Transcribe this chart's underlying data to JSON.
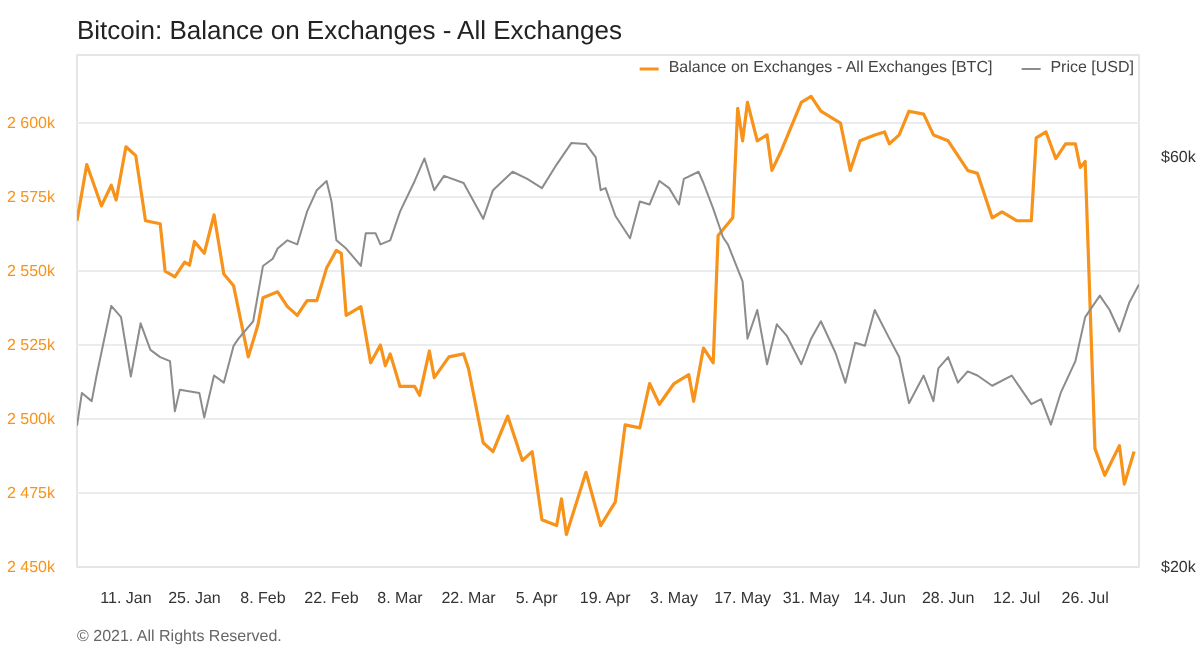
{
  "chart_data": {
    "type": "line",
    "title": "Bitcoin: Balance on Exchanges - All Exchanges",
    "annotations": [
      "© 2021. All Rights Reserved."
    ],
    "xlim": [
      "2021-01-01",
      "2021-08-06"
    ],
    "xticks": [
      {
        "value": "2021-01-11",
        "label": "11. Jan"
      },
      {
        "value": "2021-01-25",
        "label": "25. Jan"
      },
      {
        "value": "2021-02-08",
        "label": "8. Feb"
      },
      {
        "value": "2021-02-22",
        "label": "22. Feb"
      },
      {
        "value": "2021-03-08",
        "label": "8. Mar"
      },
      {
        "value": "2021-03-22",
        "label": "22. Mar"
      },
      {
        "value": "2021-04-05",
        "label": "5. Apr"
      },
      {
        "value": "2021-04-19",
        "label": "19. Apr"
      },
      {
        "value": "2021-05-03",
        "label": "3. May"
      },
      {
        "value": "2021-05-17",
        "label": "17. May"
      },
      {
        "value": "2021-05-31",
        "label": "31. May"
      },
      {
        "value": "2021-06-14",
        "label": "14. Jun"
      },
      {
        "value": "2021-06-28",
        "label": "28. Jun"
      },
      {
        "value": "2021-07-12",
        "label": "12. Jul"
      },
      {
        "value": "2021-07-26",
        "label": "26. Jul"
      }
    ],
    "ylim": [
      2450000,
      2623000
    ],
    "yticks": [
      {
        "value": 2450000,
        "label": "2 450k"
      },
      {
        "value": 2475000,
        "label": "2 475k"
      },
      {
        "value": 2500000,
        "label": "2 500k"
      },
      {
        "value": 2525000,
        "label": "2 525k"
      },
      {
        "value": 2550000,
        "label": "2 550k"
      },
      {
        "value": 2575000,
        "label": "2 575k"
      },
      {
        "value": 2600000,
        "label": "2 600k"
      }
    ],
    "y2lim": [
      20000,
      70000
    ],
    "y2ticks": [
      {
        "value": 20000,
        "label": "$20k"
      },
      {
        "value": 60000,
        "label": "$60k"
      }
    ],
    "grid": "y",
    "legend": "top right",
    "series": [
      {
        "name": "Balance on Exchanges - All Exchanges [BTC]",
        "color": "#f7931a",
        "x": [
          "2021-01-01",
          "2021-01-03",
          "2021-01-06",
          "2021-01-08",
          "2021-01-09",
          "2021-01-11",
          "2021-01-13",
          "2021-01-15",
          "2021-01-18",
          "2021-01-19",
          "2021-01-21",
          "2021-01-23",
          "2021-01-24",
          "2021-01-25",
          "2021-01-27",
          "2021-01-29",
          "2021-01-31",
          "2021-02-02",
          "2021-02-05",
          "2021-02-07",
          "2021-02-08",
          "2021-02-11",
          "2021-02-13",
          "2021-02-15",
          "2021-02-17",
          "2021-02-19",
          "2021-02-21",
          "2021-02-23",
          "2021-02-24",
          "2021-02-25",
          "2021-02-28",
          "2021-03-02",
          "2021-03-04",
          "2021-03-05",
          "2021-03-06",
          "2021-03-08",
          "2021-03-11",
          "2021-03-12",
          "2021-03-14",
          "2021-03-15",
          "2021-03-18",
          "2021-03-21",
          "2021-03-22",
          "2021-03-25",
          "2021-03-27",
          "2021-03-30",
          "2021-04-02",
          "2021-04-04",
          "2021-04-06",
          "2021-04-09",
          "2021-04-10",
          "2021-04-11",
          "2021-04-15",
          "2021-04-18",
          "2021-04-21",
          "2021-04-23",
          "2021-04-26",
          "2021-04-28",
          "2021-04-30",
          "2021-05-03",
          "2021-05-06",
          "2021-05-07",
          "2021-05-09",
          "2021-05-11",
          "2021-05-12",
          "2021-05-15",
          "2021-05-16",
          "2021-05-17",
          "2021-05-18",
          "2021-05-20",
          "2021-05-22",
          "2021-05-23",
          "2021-05-25",
          "2021-05-29",
          "2021-05-31",
          "2021-06-02",
          "2021-06-06",
          "2021-06-08",
          "2021-06-10",
          "2021-06-13",
          "2021-06-15",
          "2021-06-16",
          "2021-06-18",
          "2021-06-20",
          "2021-06-23",
          "2021-06-25",
          "2021-06-28",
          "2021-07-02",
          "2021-07-04",
          "2021-07-07",
          "2021-07-09",
          "2021-07-12",
          "2021-07-15",
          "2021-07-16",
          "2021-07-18",
          "2021-07-20",
          "2021-07-22",
          "2021-07-24",
          "2021-07-25",
          "2021-07-26",
          "2021-07-28",
          "2021-07-30",
          "2021-08-02",
          "2021-08-03",
          "2021-08-05"
        ],
        "values": [
          2567000,
          2586000,
          2572000,
          2579000,
          2574000,
          2592000,
          2589000,
          2567000,
          2566000,
          2550000,
          2548000,
          2553000,
          2552000,
          2560000,
          2556000,
          2569000,
          2549000,
          2545000,
          2521000,
          2532000,
          2541000,
          2543000,
          2538000,
          2535000,
          2540000,
          2540000,
          2551000,
          2557000,
          2556000,
          2535000,
          2538000,
          2519000,
          2525000,
          2518000,
          2522000,
          2511000,
          2511000,
          2508000,
          2523000,
          2514000,
          2521000,
          2522000,
          2517000,
          2492000,
          2489000,
          2501000,
          2486000,
          2489000,
          2466000,
          2464000,
          2473000,
          2461000,
          2482000,
          2464000,
          2472000,
          2498000,
          2497000,
          2512000,
          2505000,
          2512000,
          2515000,
          2506000,
          2524000,
          2519000,
          2562000,
          2568000,
          2605000,
          2594000,
          2607000,
          2594000,
          2596000,
          2584000,
          2591000,
          2607000,
          2609000,
          2604000,
          2600000,
          2584000,
          2594000,
          2596000,
          2597000,
          2593000,
          2596000,
          2604000,
          2603000,
          2596000,
          2594000,
          2584000,
          2583000,
          2568000,
          2570000,
          2567000,
          2567000,
          2595000,
          2597000,
          2588000,
          2593000,
          2593000,
          2585000,
          2587000,
          2490000,
          2481000,
          2491000,
          2478000,
          2489000
        ]
      },
      {
        "name": "Price [USD]",
        "color": "#8c8c8c",
        "axis": "y2",
        "x": [
          "2021-01-01",
          "2021-01-02",
          "2021-01-04",
          "2021-01-05",
          "2021-01-08",
          "2021-01-10",
          "2021-01-12",
          "2021-01-14",
          "2021-01-16",
          "2021-01-18",
          "2021-01-20",
          "2021-01-21",
          "2021-01-22",
          "2021-01-26",
          "2021-01-27",
          "2021-01-29",
          "2021-01-31",
          "2021-02-02",
          "2021-02-03",
          "2021-02-06",
          "2021-02-08",
          "2021-02-10",
          "2021-02-11",
          "2021-02-13",
          "2021-02-15",
          "2021-02-17",
          "2021-02-19",
          "2021-02-21",
          "2021-02-22",
          "2021-02-23",
          "2021-02-25",
          "2021-02-28",
          "2021-03-01",
          "2021-03-03",
          "2021-03-04",
          "2021-03-06",
          "2021-03-08",
          "2021-03-11",
          "2021-03-13",
          "2021-03-15",
          "2021-03-17",
          "2021-03-21",
          "2021-03-25",
          "2021-03-27",
          "2021-03-31",
          "2021-04-03",
          "2021-04-06",
          "2021-04-09",
          "2021-04-12",
          "2021-04-15",
          "2021-04-17",
          "2021-04-18",
          "2021-04-19",
          "2021-04-21",
          "2021-04-24",
          "2021-04-26",
          "2021-04-28",
          "2021-04-30",
          "2021-05-02",
          "2021-05-04",
          "2021-05-05",
          "2021-05-08",
          "2021-05-09",
          "2021-05-11",
          "2021-05-13",
          "2021-05-14",
          "2021-05-17",
          "2021-05-18",
          "2021-05-20",
          "2021-05-22",
          "2021-05-24",
          "2021-05-26",
          "2021-05-29",
          "2021-05-31",
          "2021-06-02",
          "2021-06-05",
          "2021-06-07",
          "2021-06-09",
          "2021-06-11",
          "2021-06-13",
          "2021-06-16",
          "2021-06-18",
          "2021-06-20",
          "2021-06-23",
          "2021-06-25",
          "2021-06-26",
          "2021-06-28",
          "2021-06-30",
          "2021-07-02",
          "2021-07-04",
          "2021-07-07",
          "2021-07-11",
          "2021-07-13",
          "2021-07-15",
          "2021-07-17",
          "2021-07-19",
          "2021-07-21",
          "2021-07-24",
          "2021-07-26",
          "2021-07-29",
          "2021-07-31",
          "2021-08-02",
          "2021-08-04",
          "2021-08-06"
        ],
        "values": [
          33800,
          37000,
          36200,
          38700,
          45500,
          44400,
          38600,
          43800,
          41200,
          40500,
          40100,
          35200,
          37300,
          37000,
          34600,
          38700,
          38000,
          41600,
          42300,
          44000,
          49400,
          50100,
          51100,
          51900,
          51500,
          54700,
          56800,
          57700,
          55700,
          51900,
          51100,
          49400,
          52600,
          52600,
          51500,
          51900,
          54700,
          57700,
          59900,
          56800,
          58200,
          57500,
          54000,
          56800,
          58600,
          57900,
          57000,
          59300,
          61400,
          61300,
          60000,
          56800,
          57000,
          54300,
          52100,
          55700,
          55400,
          57700,
          57000,
          55400,
          57900,
          58600,
          57500,
          55000,
          52200,
          51500,
          47900,
          42300,
          45100,
          39800,
          43700,
          42600,
          39800,
          42300,
          44000,
          40900,
          38000,
          41900,
          41600,
          45100,
          42300,
          40500,
          36000,
          38700,
          36200,
          39400,
          40500,
          38000,
          39100,
          38700,
          37700,
          38700,
          37300,
          35900,
          36400,
          33900,
          37000,
          40100,
          44400,
          46500,
          45100,
          43000,
          45800,
          47600
        ]
      }
    ]
  }
}
